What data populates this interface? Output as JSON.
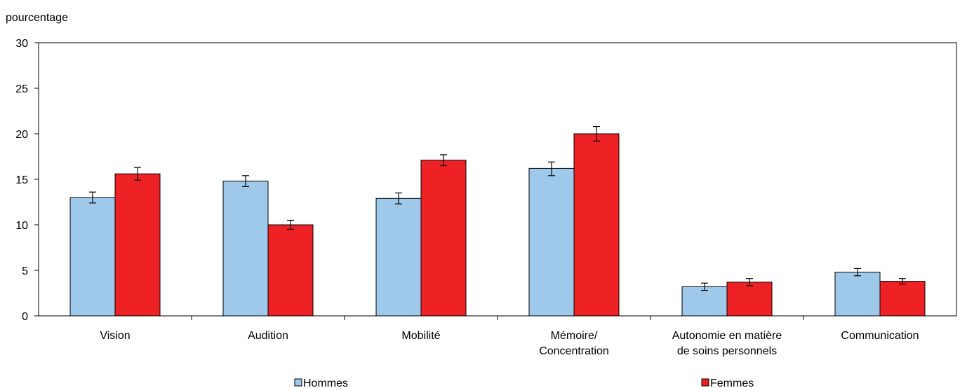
{
  "chart_data": {
    "type": "bar",
    "ylabel": "pourcentage",
    "ylim": [
      0,
      30
    ],
    "yticks": [
      0,
      5,
      10,
      15,
      20,
      25,
      30
    ],
    "categories": [
      [
        "Vision"
      ],
      [
        "Audition"
      ],
      [
        "Mobilité"
      ],
      [
        "Mémoire/",
        "Concentration"
      ],
      [
        "Autonomie en matière",
        "de soins personnels"
      ],
      [
        "Communication"
      ]
    ],
    "series": [
      {
        "name": "Hommes",
        "color": "#9fc9ea",
        "values": [
          13.0,
          14.8,
          12.9,
          16.2,
          3.2,
          4.8
        ],
        "error_low": [
          12.4,
          14.2,
          12.3,
          15.4,
          2.8,
          4.4
        ],
        "error_high": [
          13.6,
          15.4,
          13.5,
          16.9,
          3.6,
          5.2
        ]
      },
      {
        "name": "Femmes",
        "color": "#ee2224",
        "values": [
          15.6,
          10.0,
          17.1,
          20.0,
          3.7,
          3.8
        ],
        "error_low": [
          14.9,
          9.5,
          16.5,
          19.2,
          3.3,
          3.5
        ],
        "error_high": [
          16.3,
          10.5,
          17.7,
          20.8,
          4.1,
          4.1
        ]
      }
    ],
    "grid": false,
    "legend_position": "bottom"
  }
}
